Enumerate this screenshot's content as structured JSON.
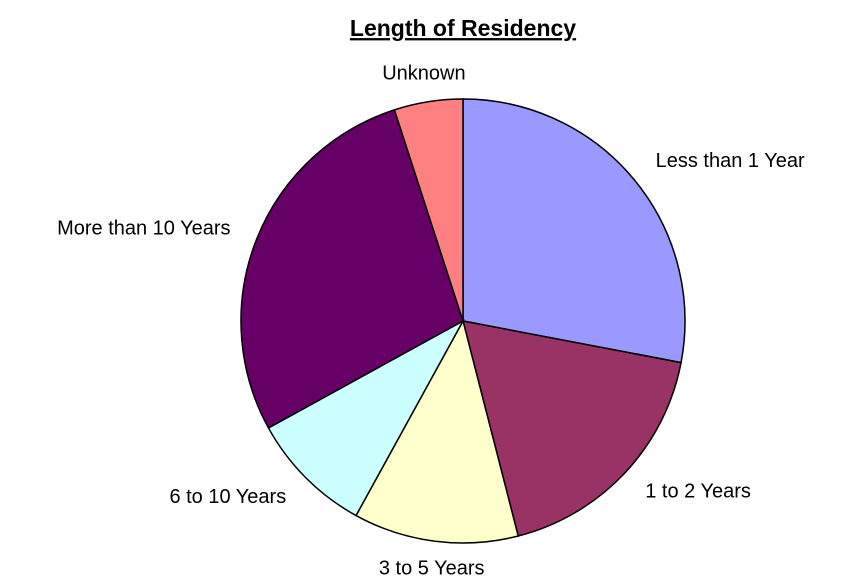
{
  "chart_data": {
    "type": "pie",
    "title": "Length of Residency",
    "categories": [
      "Less than 1 Year",
      "1 to 2 Years",
      "3 to 5 Years",
      "6 to 10 Years",
      "More than 10 Years",
      "Unknown"
    ],
    "values": [
      28,
      18,
      12,
      9,
      28,
      5
    ],
    "colors": [
      "#9999ff",
      "#993366",
      "#ffffcc",
      "#ccffff",
      "#660066",
      "#ff8080"
    ]
  }
}
